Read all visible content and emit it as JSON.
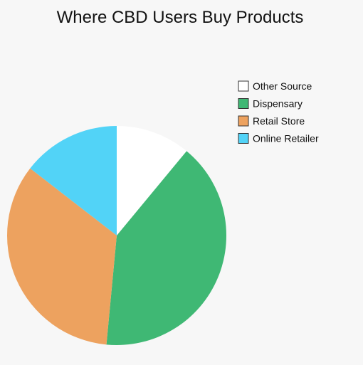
{
  "chart_data": {
    "type": "pie",
    "title": "Where CBD Users Buy Products",
    "legend_position": "right",
    "slices": [
      {
        "label": "Other Source",
        "value": 11,
        "color": "#ffffff"
      },
      {
        "label": "Dispensary",
        "value": 40.5,
        "color": "#3fb874"
      },
      {
        "label": "Retail Store",
        "value": 34,
        "color": "#eda25f"
      },
      {
        "label": "Online Retailer",
        "value": 14.5,
        "color": "#52d3f7"
      }
    ],
    "legend": [
      {
        "label": "Other Source",
        "color": "#ffffff"
      },
      {
        "label": "Dispensary",
        "color": "#3fb874"
      },
      {
        "label": "Retail Store",
        "color": "#eda25f"
      },
      {
        "label": "Online Retailer",
        "color": "#52d3f7"
      }
    ]
  }
}
